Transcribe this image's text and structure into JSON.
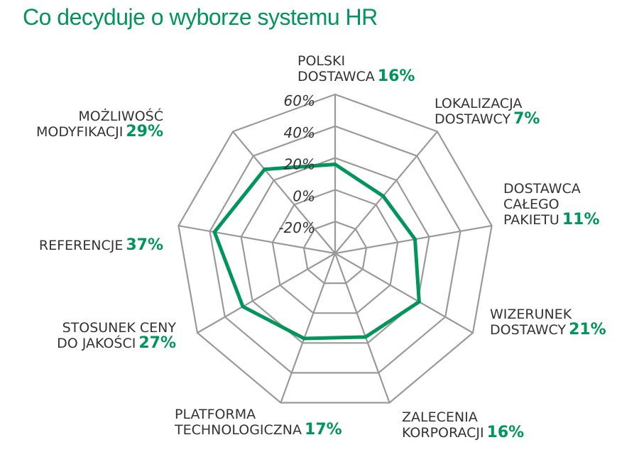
{
  "title": "Co decyduje o wyborze systemu HR",
  "chart_data": {
    "type": "radar",
    "axes": [
      {
        "label": [
          "POLSKI",
          "DOSTAWCA"
        ],
        "value_label": "16%",
        "value": 16
      },
      {
        "label": [
          "LOKALIZACJA",
          "DOSTAWCY"
        ],
        "value_label": "7%",
        "value": 7
      },
      {
        "label": [
          "DOSTAWCA",
          "CAŁEGO",
          "PAKIETU"
        ],
        "value_label": "11%",
        "value": 11
      },
      {
        "label": [
          "WIZERUNEK",
          "DOSTAWCY"
        ],
        "value_label": "21%",
        "value": 21
      },
      {
        "label": [
          "ZALECENIA",
          "KORPORACJI"
        ],
        "value_label": "16%",
        "value": 16
      },
      {
        "label": [
          "PLATFORMA",
          "TECHNOLOGICZNA"
        ],
        "value_label": "17%",
        "value": 17
      },
      {
        "label": [
          "STOSUNEK CENY",
          "DO JAKOŚCI"
        ],
        "value_label": "27%",
        "value": 27
      },
      {
        "label": [
          "REFERENCJE"
        ],
        "value_label": "37%",
        "value": 37
      },
      {
        "label": [
          "MOŻLIWOŚĆ",
          "MODYFIKACJI"
        ],
        "value_label": "29%",
        "value": 29
      }
    ],
    "ticks": [
      "-20%",
      "0%",
      "20%",
      "40%",
      "60%"
    ],
    "tick_values": [
      -20,
      0,
      20,
      40,
      60
    ],
    "rmin": -40,
    "rmax": 60,
    "grid": true,
    "colors": {
      "series": "#00955a",
      "grid": "#9a9a9a",
      "title": "#00955a",
      "value_labels": "#00955a",
      "text": "#333333"
    }
  }
}
